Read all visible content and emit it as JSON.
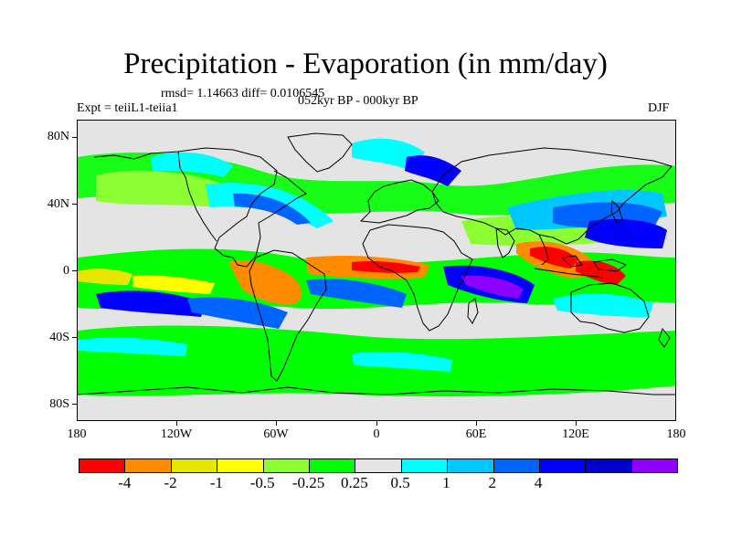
{
  "title": "Precipitation - Evaporation (in mm/day)",
  "stats": "rmsd= 1.14663 diff= 0.0106545",
  "experiment": "Expt = teiiL1-teiia1",
  "period": "052kyr BP - 000kyr BP",
  "season": "DJF",
  "axes": {
    "y_labels": [
      "80N",
      "40N",
      "0",
      "40S",
      "80S"
    ],
    "x_labels": [
      "180",
      "120W",
      "60W",
      "0",
      "60E",
      "120E",
      "180"
    ]
  },
  "colorbar": {
    "colors": [
      "#ff0000",
      "#ff8c00",
      "#e6e600",
      "#ffff00",
      "#8cff32",
      "#00ff00",
      "#e4e4e4",
      "#00ffff",
      "#00c8ff",
      "#0064ff",
      "#0000ff",
      "#0000c8",
      "#8c00ff"
    ],
    "labels": [
      "-4",
      "-2",
      "-1",
      "-0.5",
      "-0.25",
      "0.25",
      "0.5",
      "1",
      "2",
      "4"
    ]
  },
  "map": {
    "background_color": "#e4e4e4",
    "coastline_color": "#000000"
  }
}
